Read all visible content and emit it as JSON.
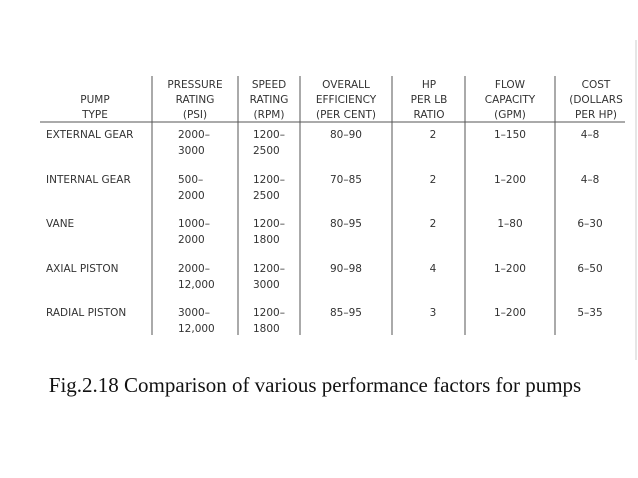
{
  "table": {
    "header": [
      [
        "PUMP",
        "TYPE"
      ],
      [
        "PRESSURE",
        "RATING",
        "(PSI)"
      ],
      [
        "SPEED",
        "RATING",
        "(RPM)"
      ],
      [
        "OVERALL",
        "EFFICIENCY",
        "(PER CENT)"
      ],
      [
        "HP",
        "PER LB",
        "RATIO"
      ],
      [
        "FLOW",
        "CAPACITY",
        "(GPM)"
      ],
      [
        "COST",
        "(DOLLARS",
        "PER HP)"
      ]
    ],
    "rows": [
      [
        [
          "EXTERNAL GEAR"
        ],
        [
          "2000–",
          "3000"
        ],
        [
          "1200–",
          "2500"
        ],
        [
          "80–90"
        ],
        [
          "2"
        ],
        [
          "1–150"
        ],
        [
          "4–8"
        ]
      ],
      [
        [
          "INTERNAL GEAR"
        ],
        [
          "500–",
          "2000"
        ],
        [
          "1200–",
          "2500"
        ],
        [
          "70–85"
        ],
        [
          "2"
        ],
        [
          "1–200"
        ],
        [
          "4–8"
        ]
      ],
      [
        [
          "VANE"
        ],
        [
          "1000–",
          "2000"
        ],
        [
          "1200–",
          "1800"
        ],
        [
          "80–95"
        ],
        [
          "2"
        ],
        [
          "1–80"
        ],
        [
          "6–30"
        ]
      ],
      [
        [
          "AXIAL PISTON"
        ],
        [
          "2000–",
          "12,000"
        ],
        [
          "1200–",
          "3000"
        ],
        [
          "90–98"
        ],
        [
          "4"
        ],
        [
          "1–200"
        ],
        [
          "6–50"
        ]
      ],
      [
        [
          "RADIAL PISTON"
        ],
        [
          "3000–",
          "12,000"
        ],
        [
          "1200–",
          "1800"
        ],
        [
          "85–95"
        ],
        [
          "3"
        ],
        [
          "1–200"
        ],
        [
          "5–35"
        ]
      ]
    ]
  },
  "caption": "Fig.2.18 Comparison of various performance factors for pumps"
}
